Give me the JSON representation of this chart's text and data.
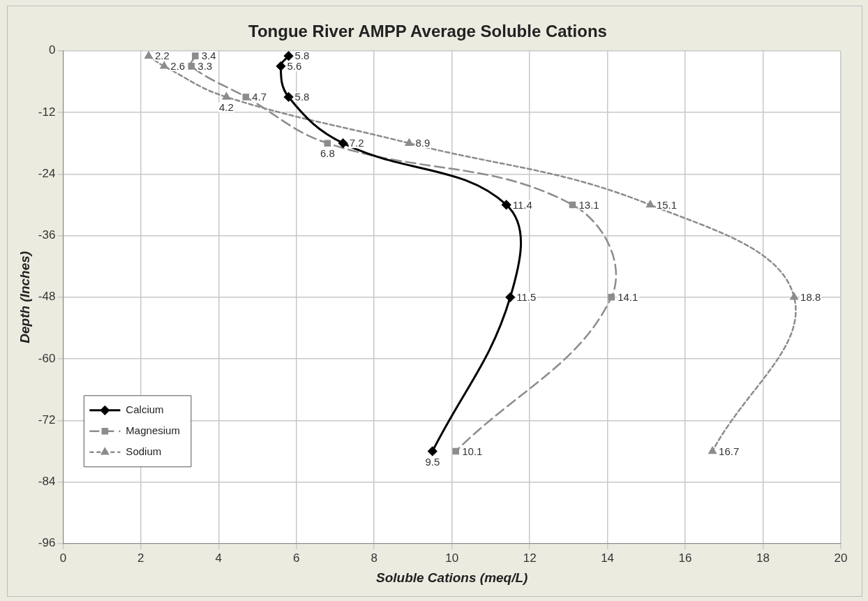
{
  "chart_data": {
    "type": "line",
    "orientation": "horizontal",
    "title": "Tongue River AMPP Average Soluble Cations",
    "xlabel": "Soluble Cations (meq/L)",
    "ylabel": "Depth (Inches)",
    "xlim": [
      0,
      20
    ],
    "xticks": [
      0,
      2,
      4,
      6,
      8,
      10,
      12,
      14,
      16,
      18,
      20
    ],
    "ylim": [
      -96,
      0
    ],
    "yticks": [
      -96,
      -84,
      -72,
      -60,
      -48,
      -36,
      -24,
      -12,
      0
    ],
    "grid": true,
    "legend": "bottom left",
    "data_labels": true,
    "series": [
      {
        "name": "Calcium",
        "color": "#000000",
        "marker": "diamond",
        "line_style": "solid",
        "x": [
          -1,
          -3,
          -9,
          -18,
          -30,
          -48,
          -78
        ],
        "values": [
          5.8,
          5.6,
          5.8,
          7.2,
          11.4,
          11.5,
          9.5
        ]
      },
      {
        "name": "Magnesium",
        "color": "#8c8c8c",
        "marker": "square",
        "line_style": "dashed",
        "x": [
          -1,
          -3,
          -9,
          -18,
          -30,
          -48,
          -78
        ],
        "values": [
          3.4,
          3.3,
          4.7,
          6.8,
          13.1,
          14.1,
          10.1
        ]
      },
      {
        "name": "Sodium",
        "color": "#8c8c8c",
        "marker": "triangle",
        "line_style": "dotted",
        "x": [
          -1,
          -3,
          -9,
          -18,
          -30,
          -48,
          -78
        ],
        "values": [
          2.2,
          2.6,
          4.2,
          8.9,
          15.1,
          18.8,
          16.7
        ]
      }
    ]
  }
}
